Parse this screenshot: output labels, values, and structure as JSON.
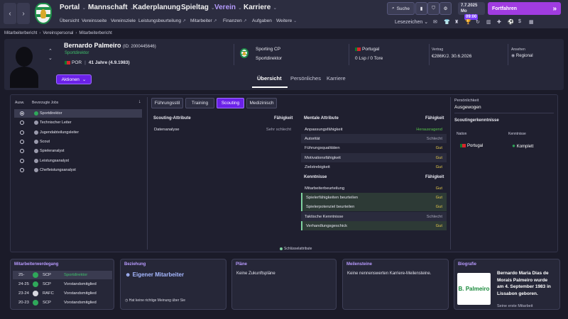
{
  "nav": {
    "menus": [
      "Portal",
      "Mannschaft",
      "Kaderplanung",
      "Spieltag",
      "Verein",
      "Karriere"
    ],
    "submenu": [
      "Übersicht",
      "Vereinsseite",
      "Vereinsziele",
      "Leistungsbeurteilung",
      "Mitarbeiter",
      "Finanzen",
      "Aufgaben",
      "Weitere"
    ],
    "search_label": "Suche",
    "date": "7.7.2025",
    "weekday": "Mo",
    "time": "09:00",
    "continue_label": "Fortfahren",
    "bookmarks_label": "Lesezeichen",
    "accent": "#a03ce0"
  },
  "breadcrumb": [
    "Mitarbeiterbericht",
    "Vereinspersonal",
    "Mitarbeiterbericht"
  ],
  "person": {
    "name": "Bernardo Palmeiro",
    "id_text": "(ID: 2000445646)",
    "role": "Sportdirektor",
    "nationality": "POR",
    "age": "41 Jahre (4.9.1983)",
    "club": "Sporting CP",
    "club_role": "Sportdirektor",
    "country": "Portugal",
    "caps": "0 Lsp / 0 Tore",
    "contract_label": "Vertrag",
    "contract_value": "€286K/J. 30.6.2026",
    "reputation_label": "Ansehen",
    "reputation_value": "Regional",
    "actions_label": "Aktionen"
  },
  "profile_tabs": [
    "Übersicht",
    "Persönliches",
    "Karriere"
  ],
  "jobs": {
    "head_select": "Ausw.",
    "head_jobs": "Bevorzugte Jobs",
    "items": [
      {
        "label": "Sportdirektor",
        "selected": true,
        "icon": "green"
      },
      {
        "label": "Technischer Leiter",
        "selected": false,
        "icon": "grey"
      },
      {
        "label": "Jugendabteilungsleiter",
        "selected": false,
        "icon": "grey"
      },
      {
        "label": "Scout",
        "selected": false,
        "icon": "grey"
      },
      {
        "label": "Spieleranalyst",
        "selected": false,
        "icon": "grey"
      },
      {
        "label": "Leistungsanalyst",
        "selected": false,
        "icon": "grey"
      },
      {
        "label": "Chefleistungsanalyst",
        "selected": false,
        "icon": "grey"
      }
    ]
  },
  "section_tabs": [
    "Führungsstil",
    "Training",
    "Scouting",
    "Medizinisch"
  ],
  "scouting": {
    "title": "Scouting-Attribute",
    "ability": "Fähigkeit",
    "rows": [
      {
        "label": "Datenanalyse",
        "value": "Sehr schlecht"
      }
    ]
  },
  "mental": {
    "title": "Mentale Attribute",
    "ability": "Fähigkeit",
    "rows": [
      {
        "label": "Anpassungsfähigkeit",
        "value": "Herausragend"
      },
      {
        "label": "Autorität",
        "value": "Schlecht"
      },
      {
        "label": "Führungsqualitäten",
        "value": "Gut"
      },
      {
        "label": "Motivationsfähigkeit",
        "value": "Gut"
      },
      {
        "label": "Zielstrebigkeit",
        "value": "Gut"
      }
    ]
  },
  "knowledge": {
    "title": "Kenntnisse",
    "ability": "Fähigkeit",
    "rows": [
      {
        "label": "Mitarbeiterbeurteilung",
        "value": "Gut"
      },
      {
        "label": "Spielerfähigkeiten beurteilen",
        "value": "Gut"
      },
      {
        "label": "Spielerpotenziel beurteilen",
        "value": "Gut"
      },
      {
        "label": "Taktische Kenntnisse",
        "value": "Schlecht"
      },
      {
        "label": "Verhandlungsgeschick",
        "value": "Gut"
      }
    ]
  },
  "personality": {
    "label": "Persönlichkeit",
    "value": "Ausgewogen"
  },
  "scout_knowledge": {
    "title": "Scoutingerkenntnisse",
    "col_nation": "Nation",
    "col_knowledge": "Kenntnisse",
    "nation": "Portugal",
    "level": "Komplett"
  },
  "key_legend": "Schlüsselattribute",
  "career": {
    "title": "Mitarbeiterwerdegang",
    "rows": [
      {
        "season": "25-",
        "club": "SCP",
        "role": "Sportdirektor"
      },
      {
        "season": "24-25",
        "club": "SCP",
        "role": "Vorstandsmitglied"
      },
      {
        "season": "23-24",
        "club": "RAFC",
        "role": "Vorstandsmitglied"
      },
      {
        "season": "20-23",
        "club": "SCP",
        "role": "Vorstandsmitglied"
      }
    ]
  },
  "relationship": {
    "title": "Beziehung",
    "value": "Eigener Mitarbeiter",
    "note": "Hat keine richtige Meinung über Sie"
  },
  "plans": {
    "title": "Pläne",
    "text": "Keine Zukunftspläne"
  },
  "milestones": {
    "title": "Meilensteine",
    "text": "Keine nennenswerten Karriere-Meilensteine."
  },
  "biography": {
    "title": "Biografie",
    "logo": "B. Palmeiro",
    "text": "Bernardo Maria Dias de Morais Palmeiro wurde am 4. September 1983 in Lissabon geboren.",
    "more": "Seine erste Mitarbeit"
  }
}
